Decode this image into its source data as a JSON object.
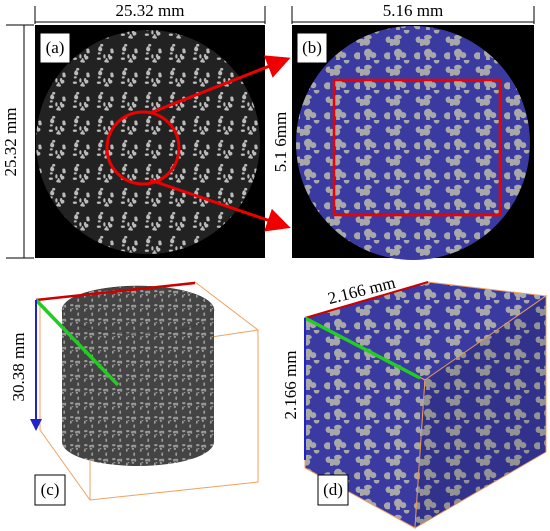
{
  "panels": [
    {
      "label": "(a)",
      "width": "25.32 mm",
      "height": "25.32 mm"
    },
    {
      "label": "(b)",
      "width": "5.16 mm",
      "height": "5.1 6mm"
    },
    {
      "label": "(c)",
      "height": "30.38 mm"
    },
    {
      "label": "(d)",
      "width": "2.166 mm",
      "height": "2.166 mm"
    }
  ]
}
